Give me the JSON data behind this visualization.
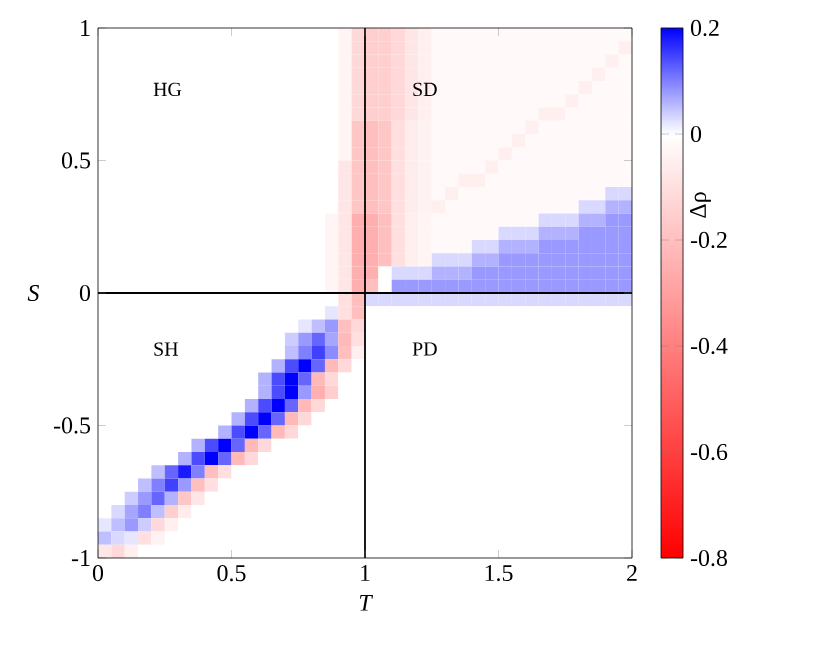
{
  "chart_data": {
    "type": "heatmap",
    "xlabel": "T",
    "ylabel": "S",
    "clabel": "Δρ",
    "xlim": [
      0,
      2
    ],
    "ylim": [
      -1,
      1
    ],
    "xticks": [
      0,
      0.5,
      1,
      1.5,
      2
    ],
    "yticks": [
      -1,
      -0.5,
      0,
      0.5,
      1
    ],
    "clim": [
      -0.8,
      0.2
    ],
    "cticks": [
      -0.8,
      -0.6,
      -0.4,
      -0.2,
      0,
      0.2
    ],
    "ref_lines": [
      {
        "axis": "x",
        "value": 1
      },
      {
        "axis": "y",
        "value": 0
      }
    ],
    "annotations": [
      "HG",
      "SD",
      "SH",
      "PD"
    ],
    "x": [
      0.025,
      0.075,
      0.125,
      0.175,
      0.225,
      0.275,
      0.325,
      0.375,
      0.425,
      0.475,
      0.525,
      0.575,
      0.625,
      0.675,
      0.725,
      0.775,
      0.825,
      0.875,
      0.925,
      0.975,
      1.025,
      1.075,
      1.125,
      1.175,
      1.225,
      1.275,
      1.325,
      1.375,
      1.425,
      1.475,
      1.525,
      1.575,
      1.625,
      1.675,
      1.725,
      1.775,
      1.825,
      1.875,
      1.925,
      1.975
    ],
    "y": [
      0.975,
      0.925,
      0.875,
      0.825,
      0.775,
      0.725,
      0.675,
      0.625,
      0.575,
      0.525,
      0.475,
      0.425,
      0.375,
      0.325,
      0.275,
      0.225,
      0.175,
      0.125,
      0.075,
      0.025,
      -0.025,
      -0.075,
      -0.125,
      -0.175,
      -0.225,
      -0.275,
      -0.325,
      -0.375,
      -0.425,
      -0.475,
      -0.525,
      -0.575,
      -0.625,
      -0.675,
      -0.725,
      -0.775,
      -0.825,
      -0.875,
      -0.925,
      -0.975
    ],
    "cells": [
      [
        0,
        0,
        0,
        0,
        0,
        0,
        0,
        0,
        0,
        0,
        0,
        0,
        0,
        0,
        0,
        0,
        0,
        0,
        -0.03,
        -0.12,
        -0.15,
        -0.15,
        -0.12,
        -0.08,
        -0.05,
        -0.02,
        -0.02,
        -0.02,
        -0.02,
        -0.02,
        -0.02,
        -0.02,
        -0.02,
        -0.02,
        -0.02,
        -0.02,
        -0.02,
        -0.02,
        -0.02,
        -0.02
      ],
      [
        0,
        0,
        0,
        0,
        0,
        0,
        0,
        0,
        0,
        0,
        0,
        0,
        0,
        0,
        0,
        0,
        0,
        0,
        -0.03,
        -0.12,
        -0.15,
        -0.15,
        -0.12,
        -0.08,
        -0.05,
        -0.02,
        -0.02,
        -0.02,
        -0.02,
        -0.02,
        -0.02,
        -0.02,
        -0.02,
        -0.02,
        -0.02,
        -0.02,
        -0.02,
        -0.02,
        -0.02,
        -0.05
      ],
      [
        0,
        0,
        0,
        0,
        0,
        0,
        0,
        0,
        0,
        0,
        0,
        0,
        0,
        0,
        0,
        0,
        0,
        0,
        -0.03,
        -0.12,
        -0.15,
        -0.15,
        -0.12,
        -0.08,
        -0.05,
        -0.02,
        -0.02,
        -0.02,
        -0.02,
        -0.02,
        -0.02,
        -0.02,
        -0.02,
        -0.02,
        -0.02,
        -0.02,
        -0.02,
        -0.02,
        -0.05,
        -0.02
      ],
      [
        0,
        0,
        0,
        0,
        0,
        0,
        0,
        0,
        0,
        0,
        0,
        0,
        0,
        0,
        0,
        0,
        0,
        0,
        -0.03,
        -0.12,
        -0.15,
        -0.15,
        -0.12,
        -0.08,
        -0.05,
        -0.02,
        -0.02,
        -0.02,
        -0.02,
        -0.02,
        -0.02,
        -0.02,
        -0.02,
        -0.02,
        -0.02,
        -0.02,
        -0.02,
        -0.05,
        -0.02,
        -0.02
      ],
      [
        0,
        0,
        0,
        0,
        0,
        0,
        0,
        0,
        0,
        0,
        0,
        0,
        0,
        0,
        0,
        0,
        0,
        0,
        -0.03,
        -0.12,
        -0.15,
        -0.15,
        -0.12,
        -0.08,
        -0.05,
        -0.02,
        -0.02,
        -0.02,
        -0.02,
        -0.02,
        -0.02,
        -0.02,
        -0.02,
        -0.02,
        -0.02,
        -0.02,
        -0.05,
        -0.02,
        -0.02,
        -0.02
      ],
      [
        0,
        0,
        0,
        0,
        0,
        0,
        0,
        0,
        0,
        0,
        0,
        0,
        0,
        0,
        0,
        0,
        0,
        0,
        -0.03,
        -0.12,
        -0.15,
        -0.15,
        -0.12,
        -0.08,
        -0.05,
        -0.02,
        -0.02,
        -0.02,
        -0.02,
        -0.02,
        -0.02,
        -0.02,
        -0.02,
        -0.02,
        -0.02,
        -0.05,
        -0.02,
        -0.02,
        -0.02,
        -0.02
      ],
      [
        0,
        0,
        0,
        0,
        0,
        0,
        0,
        0,
        0,
        0,
        0,
        0,
        0,
        0,
        0,
        0,
        0,
        0,
        -0.03,
        -0.12,
        -0.15,
        -0.15,
        -0.12,
        -0.08,
        -0.05,
        -0.02,
        -0.02,
        -0.02,
        -0.02,
        -0.02,
        -0.02,
        -0.02,
        -0.02,
        -0.05,
        -0.05,
        -0.02,
        -0.02,
        -0.02,
        -0.02,
        -0.02
      ],
      [
        0,
        0,
        0,
        0,
        0,
        0,
        0,
        0,
        0,
        0,
        0,
        0,
        0,
        0,
        0,
        0,
        0,
        0,
        -0.03,
        -0.18,
        -0.2,
        -0.18,
        -0.1,
        -0.06,
        -0.04,
        -0.02,
        -0.02,
        -0.02,
        -0.02,
        -0.02,
        -0.02,
        -0.02,
        -0.05,
        -0.02,
        -0.02,
        -0.02,
        -0.02,
        -0.02,
        -0.02,
        -0.02
      ],
      [
        0,
        0,
        0,
        0,
        0,
        0,
        0,
        0,
        0,
        0,
        0,
        0,
        0,
        0,
        0,
        0,
        0,
        0,
        -0.03,
        -0.18,
        -0.2,
        -0.18,
        -0.1,
        -0.06,
        -0.04,
        -0.02,
        -0.02,
        -0.02,
        -0.02,
        -0.02,
        -0.02,
        -0.05,
        -0.02,
        -0.02,
        -0.02,
        -0.02,
        -0.02,
        -0.02,
        -0.02,
        -0.02
      ],
      [
        0,
        0,
        0,
        0,
        0,
        0,
        0,
        0,
        0,
        0,
        0,
        0,
        0,
        0,
        0,
        0,
        0,
        0,
        -0.03,
        -0.18,
        -0.2,
        -0.18,
        -0.1,
        -0.06,
        -0.04,
        -0.02,
        -0.02,
        -0.02,
        -0.02,
        -0.02,
        -0.05,
        -0.02,
        -0.02,
        -0.02,
        -0.02,
        -0.02,
        -0.02,
        -0.02,
        -0.02,
        -0.02
      ],
      [
        0,
        0,
        0,
        0,
        0,
        0,
        0,
        0,
        0,
        0,
        0,
        0,
        0,
        0,
        0,
        0,
        0,
        0,
        -0.08,
        -0.18,
        -0.2,
        -0.18,
        -0.1,
        -0.06,
        -0.04,
        -0.02,
        -0.02,
        -0.02,
        -0.02,
        -0.05,
        -0.02,
        -0.02,
        -0.02,
        -0.02,
        -0.02,
        -0.02,
        -0.02,
        -0.02,
        -0.02,
        -0.02
      ],
      [
        0,
        0,
        0,
        0,
        0,
        0,
        0,
        0,
        0,
        0,
        0,
        0,
        0,
        0,
        0,
        0,
        0,
        0,
        -0.08,
        -0.18,
        -0.2,
        -0.18,
        -0.1,
        -0.06,
        -0.04,
        -0.02,
        -0.02,
        -0.05,
        -0.05,
        -0.02,
        -0.02,
        -0.02,
        -0.02,
        -0.02,
        -0.02,
        -0.02,
        -0.02,
        -0.02,
        -0.02,
        -0.02
      ],
      [
        0,
        0,
        0,
        0,
        0,
        0,
        0,
        0,
        0,
        0,
        0,
        0,
        0,
        0,
        0,
        0,
        0,
        0,
        -0.08,
        -0.18,
        -0.2,
        -0.18,
        -0.1,
        -0.06,
        -0.04,
        -0.02,
        -0.05,
        -0.02,
        -0.02,
        -0.02,
        -0.02,
        -0.02,
        -0.02,
        -0.02,
        -0.02,
        -0.02,
        -0.02,
        -0.02,
        0.03,
        0.03
      ],
      [
        0,
        0,
        0,
        0,
        0,
        0,
        0,
        0,
        0,
        0,
        0,
        0,
        0,
        0,
        0,
        0,
        0,
        0,
        -0.08,
        -0.18,
        -0.2,
        -0.18,
        -0.1,
        -0.06,
        -0.04,
        -0.05,
        -0.02,
        -0.02,
        -0.02,
        -0.02,
        -0.02,
        -0.02,
        -0.02,
        -0.02,
        -0.02,
        -0.02,
        0.03,
        0.03,
        0.06,
        0.06
      ],
      [
        0,
        0,
        0,
        0,
        0,
        0,
        0,
        0,
        0,
        0,
        0,
        0,
        0,
        0,
        0,
        0,
        0,
        -0.03,
        -0.08,
        -0.25,
        -0.25,
        -0.2,
        -0.1,
        -0.05,
        -0.03,
        -0.02,
        -0.02,
        -0.02,
        -0.02,
        -0.02,
        -0.02,
        -0.02,
        -0.02,
        0.03,
        0.03,
        0.03,
        0.06,
        0.06,
        0.08,
        0.08
      ],
      [
        0,
        0,
        0,
        0,
        0,
        0,
        0,
        0,
        0,
        0,
        0,
        0,
        0,
        0,
        0,
        0,
        0,
        -0.03,
        -0.08,
        -0.25,
        -0.25,
        -0.2,
        -0.1,
        -0.05,
        -0.03,
        -0.02,
        -0.02,
        -0.02,
        -0.02,
        -0.02,
        0.03,
        0.03,
        0.03,
        0.06,
        0.06,
        0.06,
        0.08,
        0.08,
        0.08,
        0.08
      ],
      [
        0,
        0,
        0,
        0,
        0,
        0,
        0,
        0,
        0,
        0,
        0,
        0,
        0,
        0,
        0,
        0,
        0,
        -0.03,
        -0.08,
        -0.25,
        -0.25,
        -0.2,
        -0.1,
        -0.05,
        -0.03,
        -0.02,
        -0.02,
        -0.02,
        0.03,
        0.03,
        0.06,
        0.06,
        0.06,
        0.08,
        0.08,
        0.08,
        0.08,
        0.08,
        0.08,
        0.08
      ],
      [
        0,
        0,
        0,
        0,
        0,
        0,
        0,
        0,
        0,
        0,
        0,
        0,
        0,
        0,
        0,
        0,
        0,
        -0.03,
        -0.08,
        -0.25,
        -0.25,
        -0.2,
        -0.1,
        -0.05,
        -0.03,
        0.03,
        0.03,
        0.03,
        0.06,
        0.06,
        0.08,
        0.08,
        0.08,
        0.08,
        0.08,
        0.08,
        0.08,
        0.08,
        0.08,
        0.08
      ],
      [
        0,
        0,
        0,
        0,
        0,
        0,
        0,
        0,
        0,
        0,
        0,
        0,
        0,
        0,
        0,
        0,
        0,
        -0.03,
        -0.08,
        -0.25,
        -0.25,
        0,
        0.03,
        0.03,
        0.03,
        0.06,
        0.06,
        0.06,
        0.08,
        0.08,
        0.08,
        0.08,
        0.08,
        0.08,
        0.08,
        0.08,
        0.08,
        0.08,
        0.08,
        0.08
      ],
      [
        0,
        0,
        0,
        0,
        0,
        0,
        0,
        0,
        0,
        0,
        0,
        0,
        0,
        0,
        0,
        0,
        0,
        -0.03,
        -0.08,
        -0.25,
        -0.2,
        0,
        0.08,
        0.08,
        0.08,
        0.08,
        0.08,
        0.08,
        0.08,
        0.08,
        0.08,
        0.08,
        0.08,
        0.08,
        0.08,
        0.08,
        0.08,
        0.08,
        0.08,
        0.08
      ],
      [
        0,
        0,
        0,
        0,
        0,
        0,
        0,
        0,
        0,
        0,
        0,
        0,
        0,
        0,
        0,
        0,
        0,
        0,
        -0.1,
        -0.2,
        0.03,
        0.03,
        0.03,
        0.03,
        0.03,
        0.03,
        0.03,
        0.03,
        0.03,
        0.03,
        0.03,
        0.03,
        0.03,
        0.03,
        0.03,
        0.03,
        0.03,
        0.03,
        0.03,
        0.03
      ],
      [
        0,
        0,
        0,
        0,
        0,
        0,
        0,
        0,
        0,
        0,
        0,
        0,
        0,
        0,
        0,
        0,
        0,
        0.02,
        -0.1,
        -0.2,
        0,
        0,
        0,
        0,
        0,
        0,
        0,
        0,
        0,
        0,
        0,
        0,
        0,
        0,
        0,
        0,
        0,
        0,
        0,
        0
      ],
      [
        0,
        0,
        0,
        0,
        0,
        0,
        0,
        0,
        0,
        0,
        0,
        0,
        0,
        0,
        0,
        0.02,
        0.05,
        0.08,
        -0.2,
        -0.12,
        0,
        0,
        0,
        0,
        0,
        0,
        0,
        0,
        0,
        0,
        0,
        0,
        0,
        0,
        0,
        0,
        0,
        0,
        0,
        0
      ],
      [
        0,
        0,
        0,
        0,
        0,
        0,
        0,
        0,
        0,
        0,
        0,
        0,
        0,
        0,
        0.04,
        0.08,
        0.12,
        0.07,
        -0.22,
        -0.1,
        0,
        0,
        0,
        0,
        0,
        0,
        0,
        0,
        0,
        0,
        0,
        0,
        0,
        0,
        0,
        0,
        0,
        0,
        0,
        0
      ],
      [
        0,
        0,
        0,
        0,
        0,
        0,
        0,
        0,
        0,
        0,
        0,
        0,
        0,
        0,
        0.05,
        0.1,
        0.15,
        0.09,
        -0.2,
        -0.05,
        0,
        0,
        0,
        0,
        0,
        0,
        0,
        0,
        0,
        0,
        0,
        0,
        0,
        0,
        0,
        0,
        0,
        0,
        0,
        0
      ],
      [
        0,
        0,
        0,
        0,
        0,
        0,
        0,
        0,
        0,
        0,
        0,
        0,
        0,
        0.06,
        0.14,
        0.2,
        0.12,
        -0.22,
        -0.12,
        0,
        0,
        0,
        0,
        0,
        0,
        0,
        0,
        0,
        0,
        0,
        0,
        0,
        0,
        0,
        0,
        0,
        0,
        0,
        0,
        0
      ],
      [
        0,
        0,
        0,
        0,
        0,
        0,
        0,
        0,
        0,
        0,
        0,
        0,
        0.06,
        0.14,
        0.2,
        0.12,
        -0.22,
        -0.12,
        0,
        0,
        0,
        0,
        0,
        0,
        0,
        0,
        0,
        0,
        0,
        0,
        0,
        0,
        0,
        0,
        0,
        0,
        0,
        0,
        0,
        0
      ],
      [
        0,
        0,
        0,
        0,
        0,
        0,
        0,
        0,
        0,
        0,
        0,
        0,
        0.06,
        0.14,
        0.2,
        0.08,
        -0.25,
        -0.15,
        0,
        0,
        0,
        0,
        0,
        0,
        0,
        0,
        0,
        0,
        0,
        0,
        0,
        0,
        0,
        0,
        0,
        0,
        0,
        0,
        0,
        0
      ],
      [
        0,
        0,
        0,
        0,
        0,
        0,
        0,
        0,
        0,
        0,
        0,
        0.06,
        0.14,
        0.2,
        0.12,
        -0.22,
        -0.12,
        0,
        0,
        0,
        0,
        0,
        0,
        0,
        0,
        0,
        0,
        0,
        0,
        0,
        0,
        0,
        0,
        0,
        0,
        0,
        0,
        0,
        0,
        0
      ],
      [
        0,
        0,
        0,
        0,
        0,
        0,
        0,
        0,
        0,
        0,
        0.06,
        0.14,
        0.2,
        0.12,
        -0.22,
        -0.12,
        0,
        0,
        0,
        0,
        0,
        0,
        0,
        0,
        0,
        0,
        0,
        0,
        0,
        0,
        0,
        0,
        0,
        0,
        0,
        0,
        0,
        0,
        0,
        0
      ],
      [
        0,
        0,
        0,
        0,
        0,
        0,
        0,
        0,
        0,
        0.06,
        0.14,
        0.2,
        0.12,
        -0.22,
        -0.12,
        0,
        0,
        0,
        0,
        0,
        0,
        0,
        0,
        0,
        0,
        0,
        0,
        0,
        0,
        0,
        0,
        0,
        0,
        0,
        0,
        0,
        0,
        0,
        0,
        0
      ],
      [
        0,
        0,
        0,
        0,
        0,
        0,
        0,
        0.06,
        0.14,
        0.2,
        0.12,
        -0.22,
        -0.12,
        0,
        0,
        0,
        0,
        0,
        0,
        0,
        0,
        0,
        0,
        0,
        0,
        0,
        0,
        0,
        0,
        0,
        0,
        0,
        0,
        0,
        0,
        0,
        0,
        0,
        0,
        0
      ],
      [
        0,
        0,
        0,
        0,
        0,
        0,
        0.06,
        0.14,
        0.2,
        0.12,
        -0.22,
        -0.12,
        0,
        0,
        0,
        0,
        0,
        0,
        0,
        0,
        0,
        0,
        0,
        0,
        0,
        0,
        0,
        0,
        0,
        0,
        0,
        0,
        0,
        0,
        0,
        0,
        0,
        0,
        0,
        0
      ],
      [
        0,
        0,
        0,
        0,
        0.05,
        0.12,
        0.18,
        0.1,
        -0.2,
        -0.1,
        0,
        0,
        0,
        0,
        0,
        0,
        0,
        0,
        0,
        0,
        0,
        0,
        0,
        0,
        0,
        0,
        0,
        0,
        0,
        0,
        0,
        0,
        0,
        0,
        0,
        0,
        0,
        0,
        0,
        0
      ],
      [
        0,
        0,
        0,
        0.05,
        0.1,
        0.15,
        0.08,
        -0.2,
        -0.1,
        0,
        0,
        0,
        0,
        0,
        0,
        0,
        0,
        0,
        0,
        0,
        0,
        0,
        0,
        0,
        0,
        0,
        0,
        0,
        0,
        0,
        0,
        0,
        0,
        0,
        0,
        0,
        0,
        0,
        0,
        0
      ],
      [
        0,
        0,
        0.04,
        0.08,
        0.12,
        0.06,
        -0.18,
        -0.08,
        0,
        0,
        0,
        0,
        0,
        0,
        0,
        0,
        0,
        0,
        0,
        0,
        0,
        0,
        0,
        0,
        0,
        0,
        0,
        0,
        0,
        0,
        0,
        0,
        0,
        0,
        0,
        0,
        0,
        0,
        0,
        0
      ],
      [
        0,
        0.03,
        0.07,
        0.1,
        0.05,
        -0.15,
        -0.06,
        0,
        0,
        0,
        0,
        0,
        0,
        0,
        0,
        0,
        0,
        0,
        0,
        0,
        0,
        0,
        0,
        0,
        0,
        0,
        0,
        0,
        0,
        0,
        0,
        0,
        0,
        0,
        0,
        0,
        0,
        0,
        0,
        0
      ],
      [
        0.02,
        0.05,
        0.08,
        0.04,
        -0.12,
        -0.05,
        0,
        0,
        0,
        0,
        0,
        0,
        0,
        0,
        0,
        0,
        0,
        0,
        0,
        0,
        0,
        0,
        0,
        0,
        0,
        0,
        0,
        0,
        0,
        0,
        0,
        0,
        0,
        0,
        0,
        0,
        0,
        0,
        0,
        0
      ],
      [
        0.05,
        0.03,
        0.02,
        -0.1,
        -0.04,
        0,
        0,
        0,
        0,
        0,
        0,
        0,
        0,
        0,
        0,
        0,
        0,
        0,
        0,
        0,
        0,
        0,
        0,
        0,
        0,
        0,
        0,
        0,
        0,
        0,
        0,
        0,
        0,
        0,
        0,
        0,
        0,
        0,
        0,
        0
      ],
      [
        -0.08,
        -0.12,
        -0.05,
        0,
        0,
        0,
        0,
        0,
        0,
        0,
        0,
        0,
        0,
        0,
        0,
        0,
        0,
        0,
        0,
        0,
        0,
        0,
        0,
        0,
        0,
        0,
        0,
        0,
        0,
        0,
        0,
        0,
        0,
        0,
        0,
        0,
        0,
        0,
        0,
        0
      ]
    ]
  }
}
